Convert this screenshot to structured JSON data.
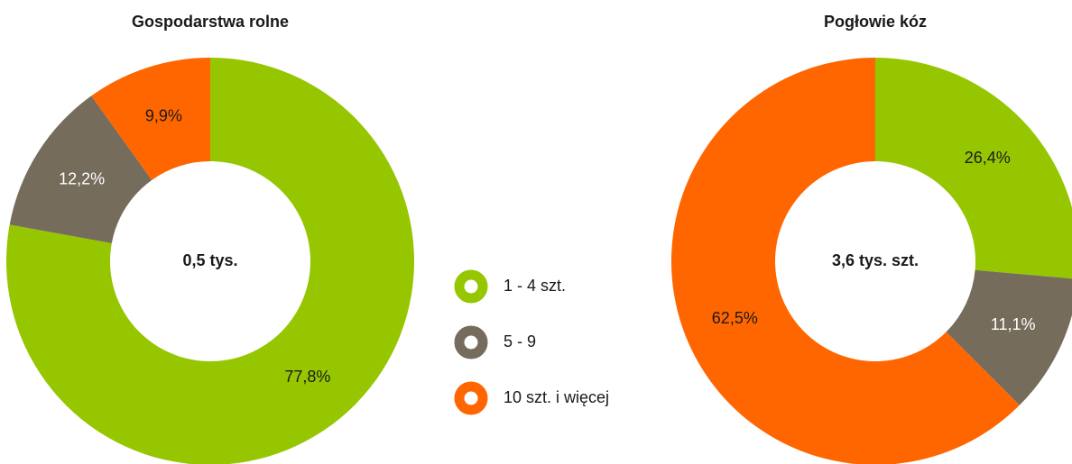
{
  "chart_data": [
    {
      "type": "donut",
      "title": "Gospodarstwa rolne",
      "center_label": "0,5 tys.",
      "values": [
        77.8,
        12.2,
        9.9
      ],
      "value_labels": [
        "77,8%",
        "12,2%",
        "9,9%"
      ]
    },
    {
      "type": "donut",
      "title": "Pogłowie kóz",
      "center_label": "3,6 tys. szt.",
      "values": [
        26.4,
        11.1,
        62.5
      ],
      "value_labels": [
        "26,4%",
        "11,1%",
        "62,5%"
      ]
    }
  ],
  "legend": {
    "labels": [
      "1 - 4 szt.",
      "5 - 9",
      "10 szt. i więcej"
    ],
    "colors": [
      "#95c600",
      "#766c5c",
      "#ff6600"
    ]
  }
}
